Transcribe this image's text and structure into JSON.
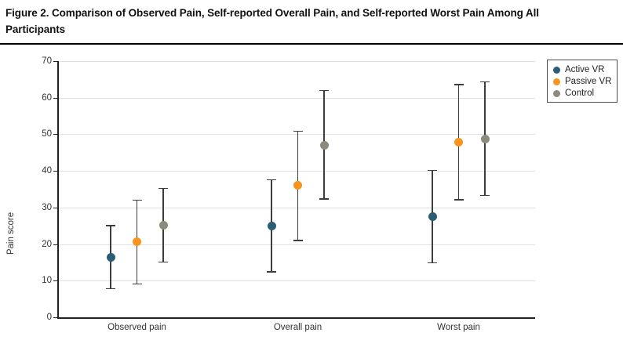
{
  "figure": {
    "title": "Figure 2. Comparison of Observed Pain, Self-reported Overall Pain, and Self-reported Worst Pain Among All Participants"
  },
  "chart_data": {
    "type": "scatter",
    "title": "Figure 2. Comparison of Observed Pain, Self-reported Overall Pain, and Self-reported Worst Pain Among All Participants",
    "xlabel": "",
    "ylabel": "Pain score",
    "ylim": [
      0,
      70
    ],
    "yticks": [
      0,
      10,
      20,
      30,
      40,
      50,
      60,
      70
    ],
    "grid": true,
    "legend_position": "top-right",
    "categories": [
      "Observed pain",
      "Overall pain",
      "Worst pain"
    ],
    "series": [
      {
        "name": "Active VR",
        "color": "#2b5d74",
        "values": [
          16.4,
          25.0,
          27.5
        ],
        "ci_low": [
          7.8,
          12.4,
          14.9
        ],
        "ci_high": [
          25.0,
          37.6,
          40.1
        ]
      },
      {
        "name": "Passive VR",
        "color": "#f7941e",
        "values": [
          20.6,
          36.0,
          47.8
        ],
        "ci_low": [
          9.1,
          21.0,
          32.1
        ],
        "ci_high": [
          32.0,
          50.8,
          63.6
        ]
      },
      {
        "name": "Control",
        "color": "#8d897c",
        "values": [
          25.2,
          47.0,
          48.8
        ],
        "ci_low": [
          15.1,
          32.3,
          33.3
        ],
        "ci_high": [
          35.2,
          62.0,
          64.3
        ]
      }
    ],
    "style": {
      "errorbar_color": "#3d3d3d",
      "axis_color": "#222222",
      "grid_color": "#e2e2e2"
    }
  }
}
